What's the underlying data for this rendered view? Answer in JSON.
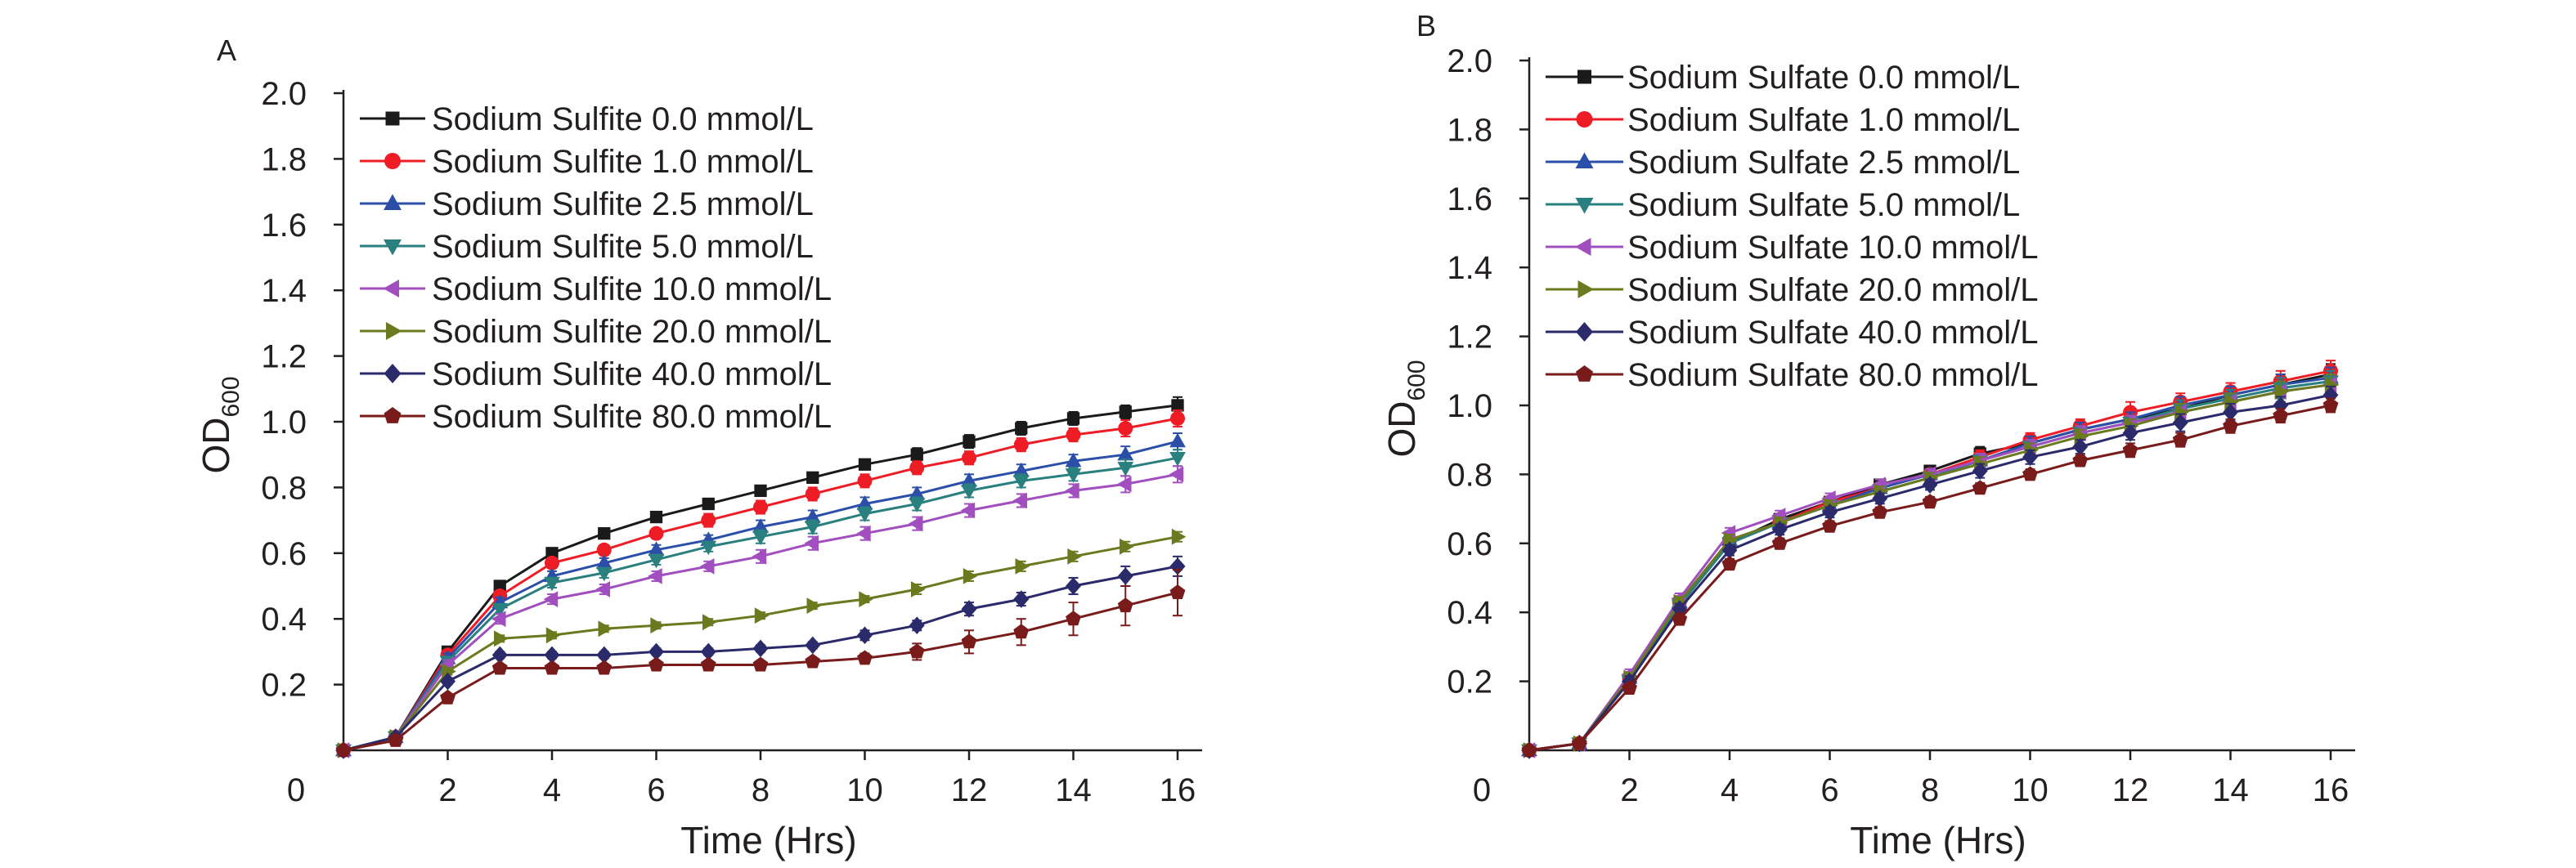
{
  "figure": {
    "panels": [
      "A",
      "B"
    ]
  },
  "chart_data": [
    {
      "type": "line",
      "panel_label": "A",
      "xlabel": "Time (Hrs)",
      "ylabel": "OD",
      "ylabel_subscript": "600",
      "xlim": [
        0,
        16
      ],
      "ylim": [
        0,
        2.0
      ],
      "x_ticks": [
        "0",
        "2",
        "4",
        "6",
        "8",
        "10",
        "12",
        "14",
        "16"
      ],
      "y_ticks": [
        "0.2",
        "0.4",
        "0.6",
        "0.8",
        "1.0",
        "1.2",
        "1.4",
        "1.6",
        "1.8",
        "2.0"
      ],
      "grid": false,
      "legend_position": "top-left",
      "x": [
        0,
        1,
        2,
        3,
        4,
        5,
        6,
        7,
        8,
        9,
        10,
        11,
        12,
        13,
        14,
        15,
        16
      ],
      "series": [
        {
          "name": "Sodium Sulfite 0.0 mmol/L",
          "color": "#1a1a1a",
          "marker": "square",
          "values": [
            0.0,
            0.04,
            0.3,
            0.5,
            0.6,
            0.66,
            0.71,
            0.75,
            0.79,
            0.83,
            0.87,
            0.9,
            0.94,
            0.98,
            1.01,
            1.03,
            1.05
          ],
          "errors": [
            0,
            0.01,
            0.015,
            0.015,
            0.015,
            0.015,
            0.015,
            0.015,
            0.015,
            0.015,
            0.015,
            0.02,
            0.02,
            0.02,
            0.02,
            0.02,
            0.025
          ]
        },
        {
          "name": "Sodium Sulfite 1.0 mmol/L",
          "color": "#ee1c25",
          "marker": "circle",
          "values": [
            0.0,
            0.04,
            0.29,
            0.47,
            0.57,
            0.61,
            0.66,
            0.7,
            0.74,
            0.78,
            0.82,
            0.86,
            0.89,
            0.93,
            0.96,
            0.98,
            1.01
          ],
          "errors": [
            0,
            0.01,
            0.015,
            0.015,
            0.015,
            0.015,
            0.015,
            0.02,
            0.02,
            0.02,
            0.02,
            0.02,
            0.02,
            0.02,
            0.02,
            0.025,
            0.025
          ]
        },
        {
          "name": "Sodium Sulfite 2.5 mmol/L",
          "color": "#2b4fa8",
          "marker": "triangle-up",
          "values": [
            0.0,
            0.04,
            0.28,
            0.45,
            0.53,
            0.57,
            0.61,
            0.64,
            0.68,
            0.71,
            0.75,
            0.78,
            0.82,
            0.85,
            0.88,
            0.9,
            0.94
          ],
          "errors": [
            0,
            0.01,
            0.015,
            0.015,
            0.015,
            0.015,
            0.015,
            0.015,
            0.02,
            0.02,
            0.02,
            0.02,
            0.02,
            0.02,
            0.02,
            0.025,
            0.025
          ]
        },
        {
          "name": "Sodium Sulfite 5.0 mmol/L",
          "color": "#2a7f7f",
          "marker": "triangle-down",
          "values": [
            0.0,
            0.04,
            0.27,
            0.43,
            0.51,
            0.54,
            0.58,
            0.62,
            0.65,
            0.68,
            0.72,
            0.75,
            0.79,
            0.82,
            0.84,
            0.86,
            0.89
          ],
          "errors": [
            0,
            0.01,
            0.015,
            0.015,
            0.015,
            0.015,
            0.015,
            0.015,
            0.02,
            0.02,
            0.02,
            0.02,
            0.02,
            0.02,
            0.02,
            0.025,
            0.025
          ]
        },
        {
          "name": "Sodium Sulfite 10.0 mmol/L",
          "color": "#a14fbf",
          "marker": "triangle-left",
          "values": [
            0.0,
            0.04,
            0.26,
            0.4,
            0.46,
            0.49,
            0.53,
            0.56,
            0.59,
            0.63,
            0.66,
            0.69,
            0.73,
            0.76,
            0.79,
            0.81,
            0.84
          ],
          "errors": [
            0,
            0.01,
            0.015,
            0.015,
            0.015,
            0.015,
            0.015,
            0.015,
            0.02,
            0.02,
            0.02,
            0.02,
            0.02,
            0.02,
            0.02,
            0.025,
            0.025
          ]
        },
        {
          "name": "Sodium Sulfite 20.0 mmol/L",
          "color": "#6b7a1f",
          "marker": "triangle-right",
          "values": [
            0.0,
            0.04,
            0.24,
            0.34,
            0.35,
            0.37,
            0.38,
            0.39,
            0.41,
            0.44,
            0.46,
            0.49,
            0.53,
            0.56,
            0.59,
            0.62,
            0.65
          ],
          "errors": [
            0,
            0.01,
            0.01,
            0.01,
            0.01,
            0.01,
            0.01,
            0.01,
            0.01,
            0.01,
            0.01,
            0.015,
            0.015,
            0.015,
            0.015,
            0.015,
            0.015
          ]
        },
        {
          "name": "Sodium Sulfite 40.0 mmol/L",
          "color": "#2b2b6b",
          "marker": "diamond",
          "values": [
            0.0,
            0.04,
            0.21,
            0.29,
            0.29,
            0.29,
            0.3,
            0.3,
            0.31,
            0.32,
            0.35,
            0.38,
            0.43,
            0.46,
            0.5,
            0.53,
            0.56
          ],
          "errors": [
            0,
            0.01,
            0.01,
            0.01,
            0.01,
            0.01,
            0.01,
            0.01,
            0.01,
            0.01,
            0.015,
            0.015,
            0.02,
            0.02,
            0.025,
            0.03,
            0.03
          ]
        },
        {
          "name": "Sodium Sulfite 80.0 mmol/L",
          "color": "#7a1b1b",
          "marker": "pentagon",
          "values": [
            0.0,
            0.03,
            0.16,
            0.25,
            0.25,
            0.25,
            0.26,
            0.26,
            0.26,
            0.27,
            0.28,
            0.3,
            0.33,
            0.36,
            0.4,
            0.44,
            0.48
          ],
          "errors": [
            0,
            0.01,
            0.01,
            0.01,
            0.01,
            0.01,
            0.01,
            0.01,
            0.01,
            0.01,
            0.015,
            0.025,
            0.035,
            0.04,
            0.05,
            0.06,
            0.07
          ]
        }
      ]
    },
    {
      "type": "line",
      "panel_label": "B",
      "xlabel": "Time (Hrs)",
      "ylabel": "OD",
      "ylabel_subscript": "600",
      "xlim": [
        0,
        16
      ],
      "ylim": [
        0,
        2.0
      ],
      "x_ticks": [
        "0",
        "2",
        "4",
        "6",
        "8",
        "10",
        "12",
        "14",
        "16"
      ],
      "y_ticks": [
        "0.2",
        "0.4",
        "0.6",
        "0.8",
        "1.0",
        "1.2",
        "1.4",
        "1.6",
        "1.8",
        "2.0"
      ],
      "grid": false,
      "legend_position": "top-left",
      "x": [
        0,
        1,
        2,
        3,
        4,
        5,
        6,
        7,
        8,
        9,
        10,
        11,
        12,
        13,
        14,
        15,
        16
      ],
      "series": [
        {
          "name": "Sodium Sulfate 0.0 mmol/L",
          "color": "#1a1a1a",
          "marker": "square",
          "values": [
            0.0,
            0.02,
            0.2,
            0.42,
            0.6,
            0.67,
            0.72,
            0.77,
            0.81,
            0.86,
            0.89,
            0.93,
            0.96,
            0.99,
            1.03,
            1.06,
            1.09
          ],
          "errors": [
            0,
            0.01,
            0.015,
            0.015,
            0.015,
            0.015,
            0.015,
            0.015,
            0.015,
            0.02,
            0.02,
            0.02,
            0.02,
            0.025,
            0.025,
            0.03,
            0.03
          ]
        },
        {
          "name": "Sodium Sulfate 1.0 mmol/L",
          "color": "#ee1c25",
          "marker": "circle",
          "values": [
            0.0,
            0.02,
            0.21,
            0.43,
            0.61,
            0.66,
            0.72,
            0.76,
            0.8,
            0.85,
            0.9,
            0.94,
            0.98,
            1.01,
            1.04,
            1.07,
            1.1
          ],
          "errors": [
            0,
            0.01,
            0.015,
            0.015,
            0.015,
            0.015,
            0.015,
            0.015,
            0.015,
            0.02,
            0.02,
            0.02,
            0.03,
            0.025,
            0.025,
            0.03,
            0.03
          ]
        },
        {
          "name": "Sodium Sulfate 2.5 mmol/L",
          "color": "#2b4fa8",
          "marker": "triangle-up",
          "values": [
            0.0,
            0.02,
            0.21,
            0.43,
            0.61,
            0.66,
            0.71,
            0.76,
            0.8,
            0.84,
            0.89,
            0.93,
            0.96,
            1.0,
            1.03,
            1.06,
            1.08
          ],
          "errors": [
            0,
            0.01,
            0.015,
            0.015,
            0.015,
            0.015,
            0.015,
            0.015,
            0.015,
            0.02,
            0.02,
            0.02,
            0.02,
            0.025,
            0.025,
            0.03,
            0.03
          ]
        },
        {
          "name": "Sodium Sulfate 5.0 mmol/L",
          "color": "#2a7f7f",
          "marker": "triangle-down",
          "values": [
            0.0,
            0.02,
            0.2,
            0.42,
            0.6,
            0.66,
            0.71,
            0.75,
            0.79,
            0.84,
            0.88,
            0.92,
            0.95,
            0.99,
            1.02,
            1.05,
            1.07
          ],
          "errors": [
            0,
            0.01,
            0.015,
            0.015,
            0.015,
            0.015,
            0.015,
            0.015,
            0.015,
            0.02,
            0.02,
            0.02,
            0.02,
            0.025,
            0.025,
            0.03,
            0.03
          ]
        },
        {
          "name": "Sodium Sulfate 10.0 mmol/L",
          "color": "#a14fbf",
          "marker": "triangle-left",
          "values": [
            0.0,
            0.02,
            0.22,
            0.44,
            0.63,
            0.68,
            0.73,
            0.77,
            0.8,
            0.84,
            0.88,
            0.92,
            0.95,
            0.98,
            1.01,
            1.04,
            1.06
          ],
          "errors": [
            0,
            0.01,
            0.015,
            0.015,
            0.015,
            0.015,
            0.015,
            0.015,
            0.015,
            0.02,
            0.02,
            0.02,
            0.02,
            0.025,
            0.025,
            0.03,
            0.03
          ]
        },
        {
          "name": "Sodium Sulfate 20.0 mmol/L",
          "color": "#6b7a1f",
          "marker": "triangle-right",
          "values": [
            0.0,
            0.02,
            0.21,
            0.43,
            0.61,
            0.66,
            0.71,
            0.75,
            0.79,
            0.83,
            0.87,
            0.91,
            0.94,
            0.98,
            1.01,
            1.04,
            1.06
          ],
          "errors": [
            0,
            0.01,
            0.015,
            0.015,
            0.015,
            0.015,
            0.015,
            0.015,
            0.015,
            0.02,
            0.02,
            0.02,
            0.02,
            0.025,
            0.025,
            0.03,
            0.03
          ]
        },
        {
          "name": "Sodium Sulfate 40.0 mmol/L",
          "color": "#2b2b6b",
          "marker": "diamond",
          "values": [
            0.0,
            0.02,
            0.2,
            0.41,
            0.58,
            0.64,
            0.69,
            0.73,
            0.77,
            0.81,
            0.85,
            0.88,
            0.92,
            0.95,
            0.98,
            1.0,
            1.03
          ],
          "errors": [
            0,
            0.01,
            0.015,
            0.015,
            0.015,
            0.015,
            0.015,
            0.015,
            0.015,
            0.02,
            0.02,
            0.02,
            0.02,
            0.025,
            0.025,
            0.025,
            0.025
          ]
        },
        {
          "name": "Sodium Sulfate 80.0 mmol/L",
          "color": "#7a1b1b",
          "marker": "pentagon",
          "values": [
            0.0,
            0.02,
            0.18,
            0.38,
            0.54,
            0.6,
            0.65,
            0.69,
            0.72,
            0.76,
            0.8,
            0.84,
            0.87,
            0.9,
            0.94,
            0.97,
            1.0
          ],
          "errors": [
            0,
            0.01,
            0.01,
            0.015,
            0.015,
            0.015,
            0.015,
            0.015,
            0.015,
            0.015,
            0.015,
            0.015,
            0.02,
            0.02,
            0.02,
            0.02,
            0.02
          ]
        }
      ]
    }
  ]
}
